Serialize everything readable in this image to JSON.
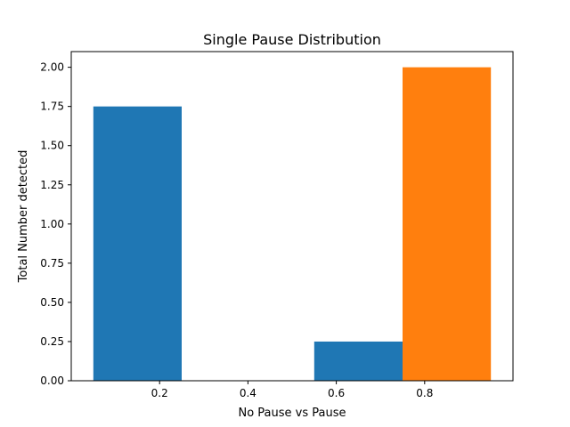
{
  "chart_data": {
    "type": "bar",
    "title": "Single Pause Distribution",
    "xlabel": "No Pause vs Pause",
    "ylabel": "Total Number detected",
    "xlim": [
      0.0,
      1.0
    ],
    "ylim": [
      0.0,
      2.1
    ],
    "xticks": [
      0.2,
      0.4,
      0.6,
      0.8
    ],
    "xtick_labels": [
      "0.2",
      "0.4",
      "0.6",
      "0.8"
    ],
    "yticks": [
      0.0,
      0.25,
      0.5,
      0.75,
      1.0,
      1.25,
      1.5,
      1.75,
      2.0
    ],
    "ytick_labels": [
      "0.00",
      "0.25",
      "0.50",
      "0.75",
      "1.00",
      "1.25",
      "1.50",
      "1.75",
      "2.00"
    ],
    "grid": false,
    "series": [
      {
        "color": "#1f77b4",
        "bars": [
          {
            "x0": 0.05,
            "x1": 0.25,
            "value": 1.75
          },
          {
            "x0": 0.55,
            "x1": 0.75,
            "value": 0.25
          }
        ]
      },
      {
        "color": "#ff7f0e",
        "bars": [
          {
            "x0": 0.75,
            "x1": 0.95,
            "value": 2.0
          }
        ]
      }
    ]
  }
}
